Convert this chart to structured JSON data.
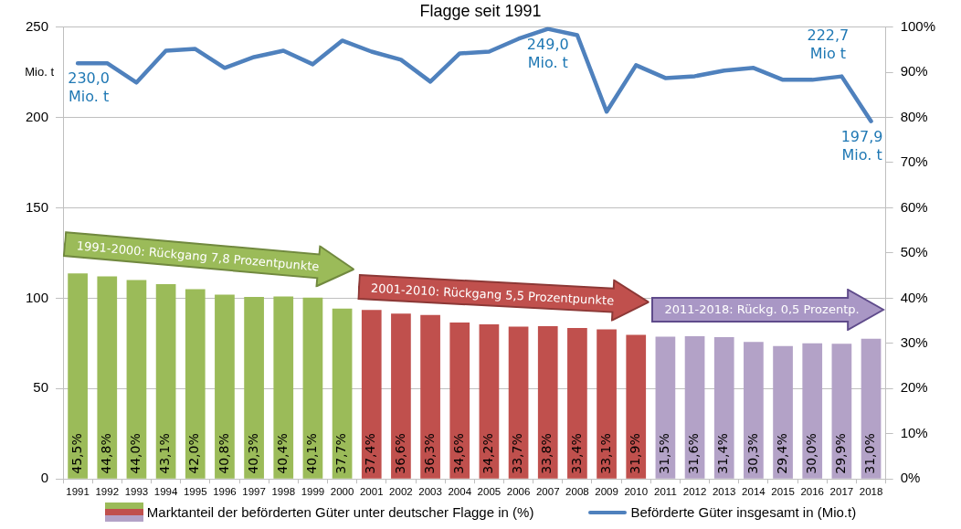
{
  "chart_data": {
    "type": "bar",
    "title": "Flagge seit 1991",
    "ylabel": "Mio. t",
    "categories": [
      "1991",
      "1992",
      "1993",
      "1994",
      "1995",
      "1996",
      "1997",
      "1998",
      "1999",
      "2000",
      "2001",
      "2002",
      "2003",
      "2004",
      "2005",
      "2006",
      "2007",
      "2008",
      "2009",
      "2010",
      "2011",
      "2012",
      "2013",
      "2014",
      "2015",
      "2016",
      "2017",
      "2018"
    ],
    "series": [
      {
        "name": "Marktanteil der beförderten Güter unter deutscher Flagge in (%)",
        "axis": "y2",
        "colors": [
          "#9bbb59",
          "#9bbb59",
          "#9bbb59",
          "#9bbb59",
          "#9bbb59",
          "#9bbb59",
          "#9bbb59",
          "#9bbb59",
          "#9bbb59",
          "#9bbb59",
          "#c0504d",
          "#c0504d",
          "#c0504d",
          "#c0504d",
          "#c0504d",
          "#c0504d",
          "#c0504d",
          "#c0504d",
          "#c0504d",
          "#c0504d",
          "#b3a2c7",
          "#b3a2c7",
          "#b3a2c7",
          "#b3a2c7",
          "#b3a2c7",
          "#b3a2c7",
          "#b3a2c7",
          "#b3a2c7"
        ],
        "values": [
          45.5,
          44.8,
          44.0,
          43.1,
          42.0,
          40.8,
          40.3,
          40.4,
          40.1,
          37.7,
          37.4,
          36.6,
          36.3,
          34.6,
          34.2,
          33.7,
          33.8,
          33.4,
          33.1,
          31.9,
          31.5,
          31.6,
          31.4,
          30.3,
          29.4,
          30.0,
          29.9,
          31.0
        ],
        "value_labels": [
          "45,5%",
          "44,8%",
          "44,0%",
          "43,1%",
          "42,0%",
          "40,8%",
          "40,3%",
          "40,4%",
          "40,1%",
          "37,7%",
          "37,4%",
          "36,6%",
          "36,3%",
          "34,6%",
          "34,2%",
          "33,7%",
          "33,8%",
          "33,4%",
          "33,1%",
          "31,9%",
          "31,5%",
          "31,6%",
          "31,4%",
          "30,3%",
          "29,4%",
          "30,0%",
          "29,9%",
          "31,0%"
        ]
      },
      {
        "name": "Beförderte Güter insgesamt in (Mio.t)",
        "type": "line",
        "axis": "y",
        "color": "#4f81bd",
        "values": [
          230.0,
          230.0,
          219.3,
          236.9,
          237.9,
          227.4,
          233.4,
          236.9,
          229.4,
          242.5,
          236.4,
          231.9,
          219.8,
          235.4,
          236.4,
          243.5,
          249.0,
          245.5,
          203.2,
          228.9,
          221.8,
          222.8,
          225.9,
          227.4,
          220.8,
          220.8,
          222.7,
          197.9
        ],
        "value_labels": [
          "230,0 Mio. t",
          null,
          null,
          null,
          null,
          null,
          null,
          null,
          null,
          null,
          null,
          null,
          null,
          null,
          null,
          null,
          "249,0 Mio. t",
          null,
          null,
          null,
          null,
          null,
          null,
          null,
          null,
          null,
          "222,7 Mio t",
          "197,9 Mio. t"
        ]
      }
    ],
    "ylim": [
      0,
      250
    ],
    "yticks": [
      0,
      50,
      100,
      150,
      200,
      250
    ],
    "y2lim": [
      0,
      100
    ],
    "y2ticks": [
      {
        "value": 0,
        "label": "0%"
      },
      {
        "value": 10,
        "label": "10%"
      },
      {
        "value": 20,
        "label": "20%"
      },
      {
        "value": 30,
        "label": "30%"
      },
      {
        "value": 40,
        "label": "40%"
      },
      {
        "value": 50,
        "label": "50%"
      },
      {
        "value": 60,
        "label": "60%"
      },
      {
        "value": 70,
        "label": "70%"
      },
      {
        "value": 80,
        "label": "80%"
      },
      {
        "value": 90,
        "label": "90%"
      },
      {
        "value": 100,
        "label": "100%"
      }
    ],
    "grid": "y",
    "legend": "bottom",
    "annotations": [
      "1991-2000: Rückgang 7,8 Prozentpunkte",
      "2001-2010: Rückgang 5,5 Prozentpunkte",
      "2011-2018: Rückg. 0,5 Prozentp."
    ]
  }
}
